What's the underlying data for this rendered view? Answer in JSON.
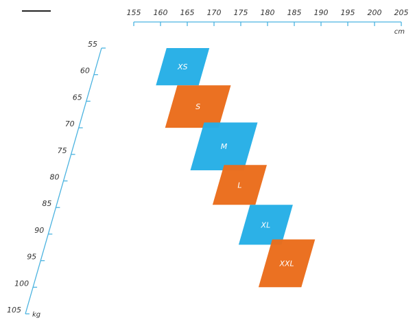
{
  "chart_data": {
    "type": "size-chart",
    "title": "",
    "x_axis": {
      "unit": "cm",
      "ticks": [
        155,
        160,
        165,
        170,
        175,
        180,
        185,
        190,
        195,
        200,
        205
      ],
      "range": [
        155,
        205
      ]
    },
    "y_axis": {
      "unit": "kg",
      "ticks": [
        55,
        60,
        65,
        70,
        75,
        80,
        85,
        90,
        95,
        100,
        105
      ],
      "range": [
        55,
        105
      ]
    },
    "sizes": [
      {
        "label": "XS",
        "height_cm": [
          156,
          164
        ],
        "weight_kg": [
          55,
          62
        ],
        "color": "#25aee6"
      },
      {
        "label": "S",
        "height_cm": [
          160,
          170
        ],
        "weight_kg": [
          62,
          70
        ],
        "color": "#ea6c1b"
      },
      {
        "label": "M",
        "height_cm": [
          167,
          177
        ],
        "weight_kg": [
          69,
          78
        ],
        "color": "#25aee6"
      },
      {
        "label": "L",
        "height_cm": [
          173,
          181
        ],
        "weight_kg": [
          77,
          84.5
        ],
        "color": "#ea6c1b"
      },
      {
        "label": "XL",
        "height_cm": [
          180,
          188
        ],
        "weight_kg": [
          84.5,
          92
        ],
        "color": "#25aee6"
      },
      {
        "label": "XXL",
        "height_cm": [
          186,
          194
        ],
        "weight_kg": [
          91,
          100
        ],
        "color": "#ea6c1b"
      }
    ],
    "axis_color": "#4bb3e0",
    "legend_line_color": "#222222"
  }
}
